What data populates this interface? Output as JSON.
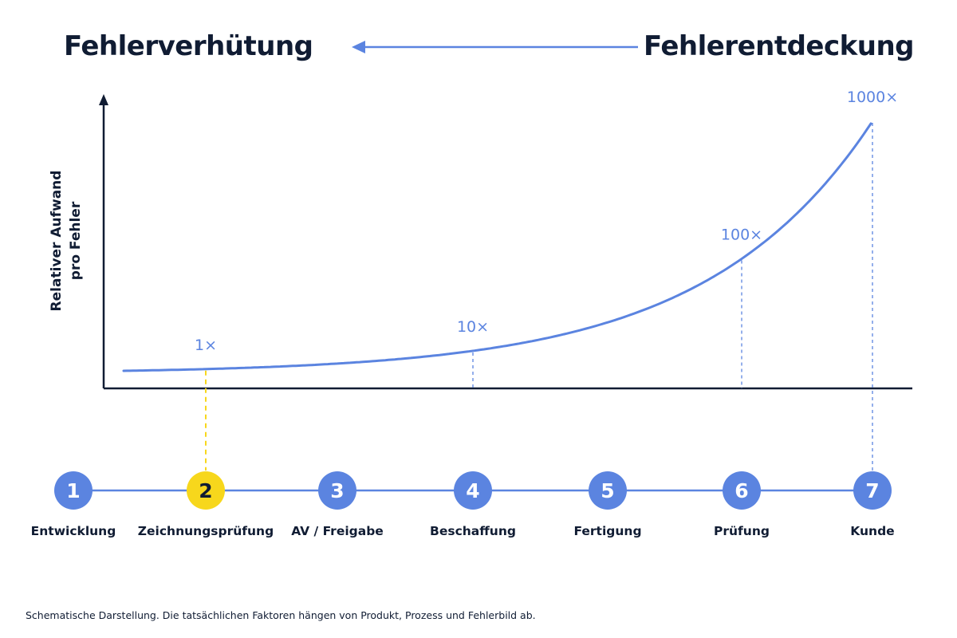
{
  "header": {
    "left_title": "Fehlerverhütung",
    "right_title": "Fehlerentdeckung"
  },
  "footnote": "Schematische Darstellung.  Die tatsächlichen Faktoren hängen von Produkt, Prozess und Fehlerbild ab.",
  "colors": {
    "accent": "#5b84e0",
    "highlight": "#f7d71c",
    "text": "#101c33",
    "axis": "#101c33"
  },
  "chart_data": {
    "type": "line",
    "ylabel": [
      "Relativer Aufwand",
      "pro Fehler"
    ],
    "yscale": "exponential",
    "grid": false,
    "points": [
      {
        "stage": 2,
        "label": "1×"
      },
      {
        "stage": 4,
        "label": "10×"
      },
      {
        "stage": 6,
        "label": "100×"
      },
      {
        "stage": 7,
        "label": "1000×"
      }
    ],
    "stages": [
      {
        "number": "1",
        "label": "Entwicklung",
        "highlight": false
      },
      {
        "number": "2",
        "label": "Zeichnungsprüfung",
        "highlight": true
      },
      {
        "number": "3",
        "label": "AV / Freigabe",
        "highlight": false
      },
      {
        "number": "4",
        "label": "Beschaffung",
        "highlight": false
      },
      {
        "number": "5",
        "label": "Fertigung",
        "highlight": false
      },
      {
        "number": "6",
        "label": "Prüfung",
        "highlight": false
      },
      {
        "number": "7",
        "label": "Kunde",
        "highlight": false
      }
    ]
  }
}
